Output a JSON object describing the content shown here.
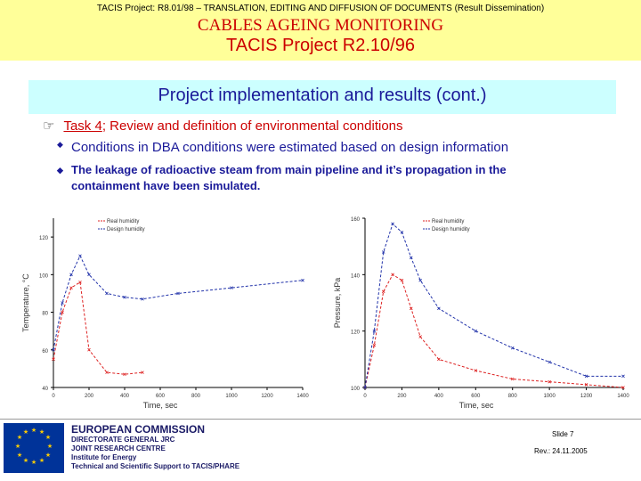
{
  "header": {
    "top_line": "TACIS Project: R8.01/98 – TRANSLATION, EDITING AND DIFFUSION OF DOCUMENTS (Result Dissemination)",
    "title": "CABLES AGEING MONITORING",
    "subtitle": "TACIS Project R2.10/96"
  },
  "slide": {
    "heading": "Project implementation and results (cont.)",
    "task_prefix": "Task 4",
    "task_rest": "; Review and definition of environmental conditions",
    "bullet1": "Conditions in DBA conditions were estimated based on design information",
    "bullet2": "The leakage of radioactive steam from main pipeline and it’s propagation in the containment have been simulated."
  },
  "chart_data": [
    {
      "type": "line",
      "xlabel": "Time, sec",
      "ylabel": "Temperature, °C",
      "xlim": [
        0,
        1400
      ],
      "ylim": [
        40,
        130
      ],
      "yticks": [
        "40",
        "60",
        "80",
        "100",
        "120"
      ],
      "xticks": [
        "0",
        "200",
        "400",
        "600",
        "800",
        "1000",
        "1200",
        "1400"
      ],
      "legend": "top-left",
      "series": [
        {
          "name": "Real humidity",
          "color": "#dd2222",
          "x": [
            0,
            50,
            100,
            150,
            200,
            300,
            400,
            500
          ],
          "y": [
            55,
            80,
            93,
            96,
            60,
            48,
            47,
            48
          ]
        },
        {
          "name": "Design humidity",
          "color": "#2233aa",
          "x": [
            0,
            50,
            100,
            150,
            200,
            300,
            400,
            500,
            700,
            1000,
            1400
          ],
          "y": [
            60,
            85,
            100,
            110,
            100,
            90,
            88,
            87,
            90,
            93,
            97
          ]
        }
      ]
    },
    {
      "type": "line",
      "xlabel": "Time, sec",
      "ylabel": "Pressure, kPa",
      "xlim": [
        0,
        1400
      ],
      "ylim": [
        100,
        160
      ],
      "yticks": [
        "100",
        "120",
        "140",
        "160"
      ],
      "xticks": [
        "0",
        "200",
        "400",
        "600",
        "800",
        "1000",
        "1200",
        "1400"
      ],
      "legend": "top-right",
      "series": [
        {
          "name": "Real humidity",
          "color": "#dd2222",
          "x": [
            0,
            50,
            100,
            150,
            200,
            250,
            300,
            400,
            600,
            800,
            1000,
            1200,
            1400
          ],
          "y": [
            100,
            115,
            134,
            140,
            138,
            128,
            118,
            110,
            106,
            103,
            102,
            101,
            100
          ]
        },
        {
          "name": "Design humidity",
          "color": "#2233aa",
          "x": [
            0,
            50,
            100,
            150,
            200,
            250,
            300,
            400,
            600,
            800,
            1000,
            1200,
            1400
          ],
          "y": [
            100,
            120,
            148,
            158,
            155,
            146,
            138,
            128,
            120,
            114,
            109,
            104,
            104
          ]
        }
      ]
    }
  ],
  "footer": {
    "org": "EUROPEAN COMMISSION",
    "line1": "DIRECTORATE GENERAL JRC",
    "line2": "JOINT RESEARCH CENTRE",
    "line3": "Institute for Energy",
    "line4": "Technical and Scientific Support to TACIS/PHARE",
    "slide_no": "Slide 7",
    "rev": "Rev.: 24.11.2005"
  }
}
